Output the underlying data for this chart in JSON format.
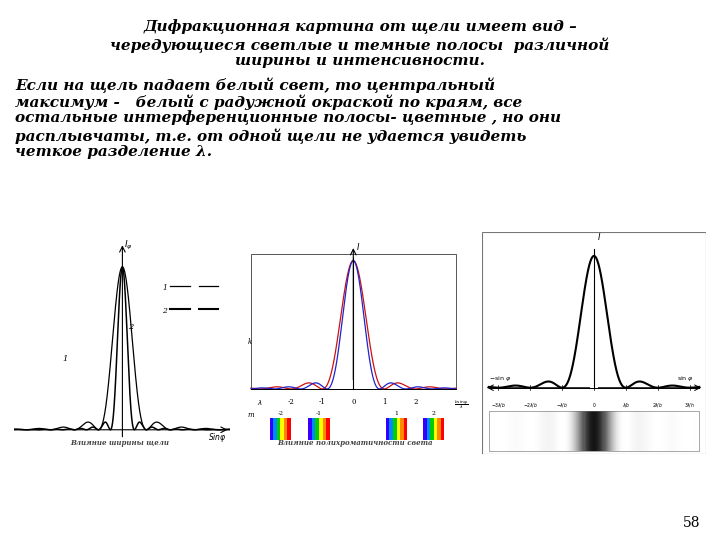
{
  "title_line1": "Дифракционная картина от щели имеет вид –",
  "title_line2": "чередующиеся светлые и темные полосы  различной",
  "title_line3": "ширины и интенсивности.",
  "body_line1": "Если на щель падает белый свет, то центральный",
  "body_line2": "максимум -   белый с радужной окраской по краям, все",
  "body_line3": "остальные интерференционные полосы- цветные , но они",
  "body_line4": "расплывчаты, т.е. от одной щели не удается увидеть",
  "body_line5": "четкое разделение λ.",
  "caption1": "Влияние ширины щели",
  "caption2": "Влияние полихроматичности света",
  "page_number": "58",
  "bg_color": "#ffffff",
  "panel1_bg": "#ffffd0",
  "panel2_bg": "#ffffd0",
  "text_color": "#000000",
  "font_size_title": 11,
  "font_size_body": 11
}
